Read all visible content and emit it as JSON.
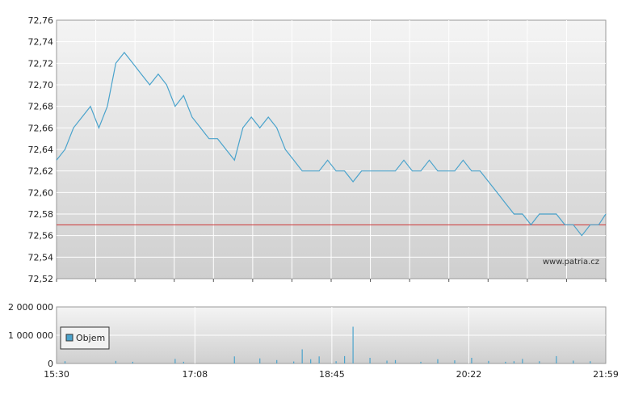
{
  "chart_data": [
    {
      "type": "line",
      "watermark": "www.patria.cz",
      "ylim": [
        72.52,
        72.76
      ],
      "yticks": [
        "72,52",
        "72,54",
        "72,56",
        "72,58",
        "72,60",
        "72,62",
        "72,64",
        "72,66",
        "72,68",
        "72,70",
        "72,72",
        "72,74",
        "72,76"
      ],
      "reference_line": {
        "value": 72.57,
        "color": "#cc3333"
      },
      "line_color": "#4aa3cc",
      "grid": true,
      "x": [
        "15:30",
        "15:36",
        "15:42",
        "15:48",
        "15:54",
        "16:00",
        "16:06",
        "16:12",
        "16:18",
        "16:24",
        "16:30",
        "16:36",
        "16:42",
        "16:48",
        "16:54",
        "17:00",
        "17:06",
        "17:12",
        "17:18",
        "17:24",
        "17:30",
        "17:36",
        "17:42",
        "17:48",
        "17:54",
        "18:00",
        "18:06",
        "18:12",
        "18:18",
        "18:24",
        "18:30",
        "18:36",
        "18:42",
        "18:48",
        "18:54",
        "19:00",
        "19:06",
        "19:12",
        "19:18",
        "19:24",
        "19:30",
        "19:36",
        "19:42",
        "19:48",
        "19:54",
        "20:00",
        "20:06",
        "20:12",
        "20:18",
        "20:24",
        "20:30",
        "20:36",
        "20:42",
        "20:48",
        "20:54",
        "21:00",
        "21:06",
        "21:12",
        "21:18",
        "21:24",
        "21:30",
        "21:36",
        "21:42",
        "21:48",
        "21:54",
        "21:59"
      ],
      "values": [
        72.63,
        72.64,
        72.66,
        72.67,
        72.68,
        72.66,
        72.68,
        72.72,
        72.73,
        72.72,
        72.71,
        72.7,
        72.71,
        72.7,
        72.68,
        72.69,
        72.67,
        72.66,
        72.65,
        72.65,
        72.64,
        72.63,
        72.66,
        72.67,
        72.66,
        72.67,
        72.66,
        72.64,
        72.63,
        72.62,
        72.62,
        72.62,
        72.63,
        72.62,
        72.62,
        72.61,
        72.62,
        72.62,
        72.62,
        72.62,
        72.62,
        72.63,
        72.62,
        72.62,
        72.63,
        72.62,
        72.62,
        72.62,
        72.63,
        72.62,
        72.62,
        72.61,
        72.6,
        72.59,
        72.58,
        72.58,
        72.57,
        72.58,
        72.58,
        72.58,
        72.57,
        72.57,
        72.56,
        72.57,
        72.57,
        72.58
      ]
    },
    {
      "type": "bar",
      "legend": "Objem",
      "ylim": [
        0,
        2000000
      ],
      "yticks": [
        "0",
        "1 000 000",
        "2 000 000"
      ],
      "xticks": [
        "15:30",
        "17:08",
        "18:45",
        "20:22",
        "21:59"
      ],
      "bar_color": "#4aa3cc",
      "grid": true,
      "series_name": "Objem",
      "x": [
        "15:36",
        "16:12",
        "16:24",
        "16:54",
        "17:00",
        "17:36",
        "17:54",
        "18:06",
        "18:18",
        "18:24",
        "18:30",
        "18:36",
        "18:48",
        "18:54",
        "19:00",
        "19:12",
        "19:24",
        "19:30",
        "19:48",
        "20:00",
        "20:12",
        "20:24",
        "20:36",
        "20:48",
        "20:54",
        "21:00",
        "21:12",
        "21:24",
        "21:36",
        "21:48"
      ],
      "values": [
        80000,
        90000,
        60000,
        160000,
        60000,
        250000,
        180000,
        120000,
        70000,
        500000,
        150000,
        250000,
        80000,
        260000,
        1300000,
        200000,
        100000,
        120000,
        60000,
        150000,
        110000,
        200000,
        90000,
        60000,
        80000,
        160000,
        80000,
        260000,
        100000,
        80000
      ]
    }
  ]
}
